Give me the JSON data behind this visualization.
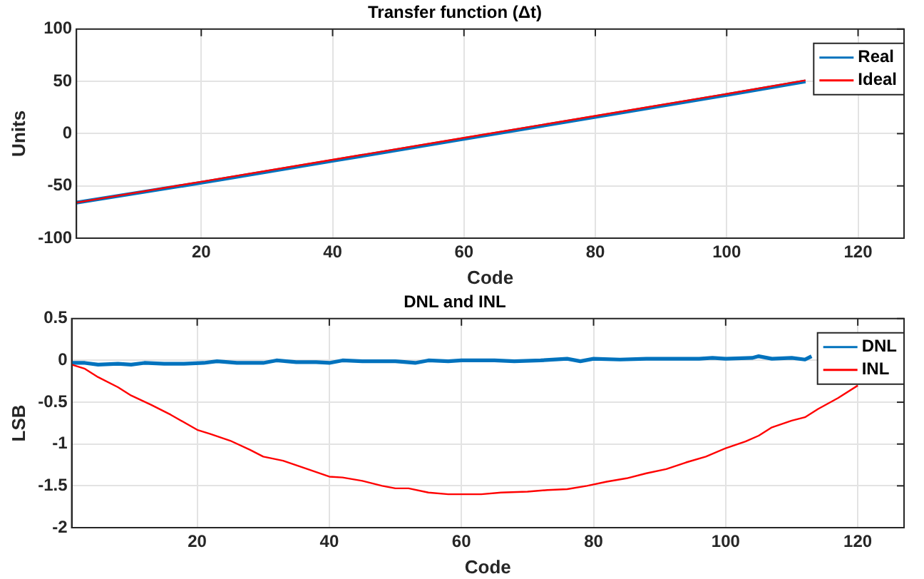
{
  "chart_data": [
    {
      "type": "line",
      "title": "Transfer function (Δt)",
      "xlabel": "Code",
      "ylabel": "Units",
      "xlim": [
        1,
        127
      ],
      "xticks": [
        20,
        40,
        60,
        80,
        100,
        120
      ],
      "ylim": [
        -100,
        100
      ],
      "yticks": [
        -100,
        -50,
        0,
        50,
        100
      ],
      "grid": true,
      "legend": "top right",
      "series": [
        {
          "name": "Real",
          "color": "#0072bd",
          "x": [
            1,
            20,
            40,
            60,
            80,
            100,
            112
          ],
          "values": [
            -66,
            -47,
            -26,
            -5,
            16,
            37,
            50
          ]
        },
        {
          "name": "Ideal",
          "color": "#ff0000",
          "x": [
            1,
            20,
            40,
            60,
            80,
            100,
            112
          ],
          "values": [
            -66,
            -46,
            -25,
            -4,
            17,
            38,
            51
          ]
        }
      ]
    },
    {
      "type": "line",
      "title": "DNL and INL",
      "xlabel": "Code",
      "ylabel": "LSB",
      "xlim": [
        1,
        127
      ],
      "xticks": [
        20,
        40,
        60,
        80,
        100,
        120
      ],
      "ylim": [
        -2,
        0.5
      ],
      "yticks": [
        -2,
        -1.5,
        -1,
        -0.5,
        0,
        0.5
      ],
      "grid": true,
      "legend": "top right",
      "series": [
        {
          "name": "DNL",
          "color": "#0072bd",
          "x": [
            1,
            3,
            5,
            8,
            10,
            12,
            15,
            18,
            21,
            23,
            26,
            30,
            32,
            35,
            38,
            40,
            42,
            45,
            50,
            53,
            55,
            58,
            60,
            65,
            68,
            72,
            76,
            78,
            80,
            84,
            88,
            92,
            96,
            98,
            100,
            104,
            105,
            107,
            110,
            112,
            113
          ],
          "values": [
            -0.03,
            -0.03,
            -0.05,
            -0.04,
            -0.05,
            -0.03,
            -0.04,
            -0.04,
            -0.03,
            -0.01,
            -0.03,
            -0.03,
            0,
            -0.02,
            -0.02,
            -0.03,
            0,
            -0.01,
            -0.01,
            -0.03,
            0,
            -0.01,
            0,
            0,
            -0.01,
            0,
            0.02,
            -0.01,
            0.02,
            0.01,
            0.02,
            0.02,
            0.02,
            0.03,
            0.02,
            0.03,
            0.05,
            0.02,
            0.03,
            0.01,
            0.05
          ]
        },
        {
          "name": "INL",
          "color": "#ff0000",
          "x": [
            1,
            3,
            5,
            8,
            10,
            13,
            16,
            20,
            22,
            25,
            28,
            30,
            33,
            36,
            40,
            42,
            45,
            48,
            50,
            52,
            55,
            58,
            60,
            63,
            66,
            70,
            73,
            76,
            79,
            82,
            85,
            88,
            91,
            94,
            97,
            100,
            103,
            105,
            107,
            110,
            112,
            114,
            117,
            120
          ],
          "values": [
            -0.05,
            -0.1,
            -0.2,
            -0.32,
            -0.42,
            -0.53,
            -0.65,
            -0.83,
            -0.88,
            -0.96,
            -1.07,
            -1.15,
            -1.2,
            -1.28,
            -1.39,
            -1.4,
            -1.44,
            -1.5,
            -1.53,
            -1.53,
            -1.58,
            -1.6,
            -1.6,
            -1.6,
            -1.58,
            -1.57,
            -1.55,
            -1.54,
            -1.5,
            -1.45,
            -1.41,
            -1.35,
            -1.3,
            -1.22,
            -1.15,
            -1.05,
            -0.97,
            -0.9,
            -0.8,
            -0.72,
            -0.68,
            -0.58,
            -0.45,
            -0.3
          ]
        }
      ]
    }
  ]
}
